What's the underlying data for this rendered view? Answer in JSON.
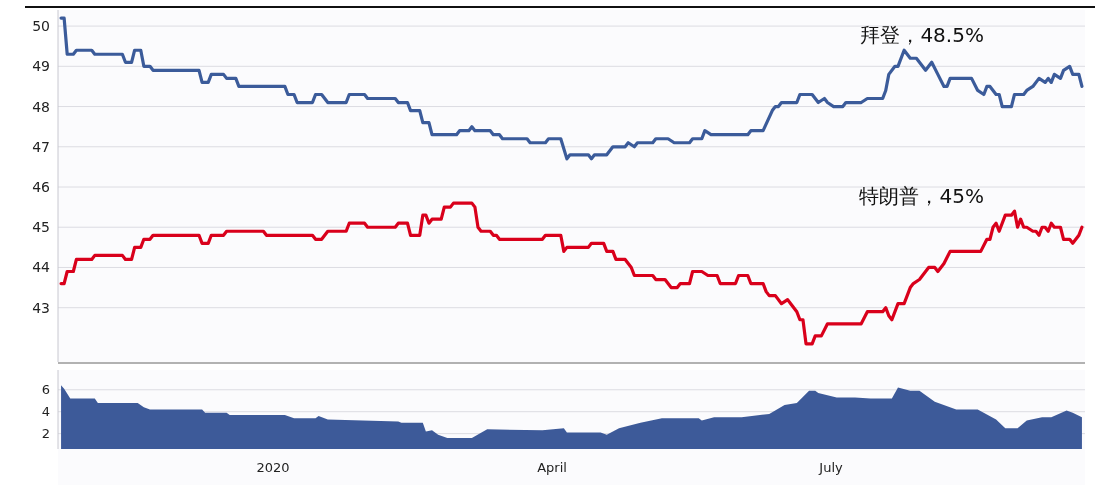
{
  "chart_data": [
    {
      "type": "line",
      "xlim": [
        "2019-10-23",
        "2020-09-22"
      ],
      "ylim": [
        41.65,
        50.4
      ],
      "yticks": [
        43,
        44,
        45,
        46,
        47,
        48,
        49,
        50
      ],
      "grid": "y",
      "tick_labels": "y",
      "annotations": [
        "拜登，48.5%",
        "特朗普，45%"
      ],
      "series": [
        {
          "color": "#3b5b9a",
          "x": [
            "2019-10-24",
            "2019-10-25",
            "2019-10-26",
            "2019-10-28",
            "2019-10-29",
            "2019-11-03",
            "2019-11-04",
            "2019-11-13",
            "2019-11-14",
            "2019-11-16",
            "2019-11-17",
            "2019-11-19",
            "2019-11-20",
            "2019-11-22",
            "2019-11-23",
            "2019-12-08",
            "2019-12-09",
            "2019-12-11",
            "2019-12-12",
            "2019-12-16",
            "2019-12-17",
            "2019-12-20",
            "2019-12-21",
            "2020-01-05",
            "2020-01-06",
            "2020-01-08",
            "2020-01-09",
            "2020-01-14",
            "2020-01-15",
            "2020-01-17",
            "2020-01-19",
            "2020-01-25",
            "2020-01-26",
            "2020-01-31",
            "2020-02-01",
            "2020-02-10",
            "2020-02-11",
            "2020-02-14",
            "2020-02-15",
            "2020-02-18",
            "2020-02-19",
            "2020-02-21",
            "2020-02-22",
            "2020-03-01",
            "2020-03-02",
            "2020-03-05",
            "2020-03-06",
            "2020-03-07",
            "2020-03-12",
            "2020-03-13",
            "2020-03-15",
            "2020-03-16",
            "2020-03-24",
            "2020-03-25",
            "2020-03-30",
            "2020-03-31",
            "2020-04-04",
            "2020-04-06",
            "2020-04-07",
            "2020-04-13",
            "2020-04-14",
            "2020-04-15",
            "2020-04-19",
            "2020-04-21",
            "2020-04-25",
            "2020-04-26",
            "2020-04-28",
            "2020-04-29",
            "2020-05-04",
            "2020-05-05",
            "2020-05-09",
            "2020-05-11",
            "2020-05-16",
            "2020-05-17",
            "2020-05-20",
            "2020-05-21",
            "2020-05-23",
            "2020-06-04",
            "2020-06-05",
            "2020-06-09",
            "2020-06-12",
            "2020-06-13",
            "2020-06-14",
            "2020-06-15",
            "2020-06-20",
            "2020-06-21",
            "2020-06-25",
            "2020-06-27",
            "2020-06-29",
            "2020-06-30",
            "2020-07-02",
            "2020-07-05",
            "2020-07-06",
            "2020-07-11",
            "2020-07-13",
            "2020-07-18",
            "2020-07-19",
            "2020-07-20",
            "2020-07-22",
            "2020-07-23",
            "2020-07-25",
            "2020-07-27",
            "2020-07-29",
            "2020-08-01",
            "2020-08-02",
            "2020-08-03",
            "2020-08-05",
            "2020-08-07",
            "2020-08-08",
            "2020-08-09",
            "2020-08-16",
            "2020-08-18",
            "2020-08-20",
            "2020-08-21",
            "2020-08-22",
            "2020-08-24",
            "2020-08-25",
            "2020-08-26",
            "2020-08-29",
            "2020-08-30",
            "2020-09-02",
            "2020-09-03",
            "2020-09-05",
            "2020-09-07",
            "2020-09-09",
            "2020-09-10",
            "2020-09-11",
            "2020-09-12",
            "2020-09-14",
            "2020-09-15",
            "2020-09-17",
            "2020-09-18",
            "2020-09-20",
            "2020-09-21"
          ],
          "values": [
            50.2,
            50.2,
            49.3,
            49.3,
            49.4,
            49.4,
            49.3,
            49.3,
            49.1,
            49.1,
            49.4,
            49.4,
            49.0,
            49.0,
            48.9,
            48.9,
            48.6,
            48.6,
            48.8,
            48.8,
            48.7,
            48.7,
            48.5,
            48.5,
            48.3,
            48.3,
            48.1,
            48.1,
            48.3,
            48.3,
            48.1,
            48.1,
            48.3,
            48.3,
            48.2,
            48.2,
            48.1,
            48.1,
            47.9,
            47.9,
            47.6,
            47.6,
            47.3,
            47.3,
            47.4,
            47.4,
            47.5,
            47.4,
            47.4,
            47.3,
            47.3,
            47.2,
            47.2,
            47.1,
            47.1,
            47.2,
            47.2,
            46.7,
            46.8,
            46.8,
            46.7,
            46.8,
            46.8,
            47.0,
            47.0,
            47.1,
            47.0,
            47.1,
            47.1,
            47.2,
            47.2,
            47.1,
            47.1,
            47.2,
            47.2,
            47.4,
            47.3,
            47.3,
            47.4,
            47.4,
            47.9,
            48.0,
            48.0,
            48.1,
            48.1,
            48.3,
            48.3,
            48.1,
            48.2,
            48.1,
            48.0,
            48.0,
            48.1,
            48.1,
            48.2,
            48.2,
            48.4,
            48.8,
            49.0,
            49.0,
            49.4,
            49.2,
            49.2,
            48.9,
            49.0,
            49.1,
            48.8,
            48.5,
            48.5,
            48.7,
            48.7,
            48.4,
            48.3,
            48.5,
            48.5,
            48.3,
            48.3,
            48.0,
            48.0,
            48.3,
            48.3,
            48.4,
            48.5,
            48.7,
            48.6,
            48.7,
            48.6,
            48.8,
            48.7,
            48.9,
            49.0,
            48.8,
            48.8,
            48.5
          ]
        },
        {
          "color": "#d9001b",
          "x": [
            "2019-10-24",
            "2019-10-25",
            "2019-10-26",
            "2019-10-28",
            "2019-10-29",
            "2019-11-03",
            "2019-11-04",
            "2019-11-13",
            "2019-11-14",
            "2019-11-16",
            "2019-11-17",
            "2019-11-19",
            "2019-11-20",
            "2019-11-22",
            "2019-11-23",
            "2019-12-08",
            "2019-12-09",
            "2019-12-11",
            "2019-12-12",
            "2019-12-16",
            "2019-12-17",
            "2019-12-29",
            "2019-12-30",
            "2020-01-14",
            "2020-01-15",
            "2020-01-17",
            "2020-01-19",
            "2020-01-25",
            "2020-01-26",
            "2020-01-31",
            "2020-02-01",
            "2020-02-10",
            "2020-02-11",
            "2020-02-14",
            "2020-02-15",
            "2020-02-18",
            "2020-02-19",
            "2020-02-20",
            "2020-02-21",
            "2020-02-22",
            "2020-02-25",
            "2020-02-26",
            "2020-02-28",
            "2020-02-29",
            "2020-03-06",
            "2020-03-07",
            "2020-03-08",
            "2020-03-09",
            "2020-03-12",
            "2020-03-13",
            "2020-03-14",
            "2020-03-15",
            "2020-03-29",
            "2020-03-30",
            "2020-04-04",
            "2020-04-05",
            "2020-04-06",
            "2020-04-13",
            "2020-04-14",
            "2020-04-18",
            "2020-04-19",
            "2020-04-21",
            "2020-04-22",
            "2020-04-25",
            "2020-04-27",
            "2020-04-28",
            "2020-05-04",
            "2020-05-05",
            "2020-05-08",
            "2020-05-10",
            "2020-05-12",
            "2020-05-13",
            "2020-05-16",
            "2020-05-17",
            "2020-05-20",
            "2020-05-22",
            "2020-05-25",
            "2020-05-26",
            "2020-05-31",
            "2020-06-01",
            "2020-06-04",
            "2020-06-05",
            "2020-06-09",
            "2020-06-10",
            "2020-06-11",
            "2020-06-13",
            "2020-06-15",
            "2020-06-17",
            "2020-06-18",
            "2020-06-20",
            "2020-06-21",
            "2020-06-22",
            "2020-06-23",
            "2020-06-25",
            "2020-06-26",
            "2020-06-28",
            "2020-06-30",
            "2020-07-11",
            "2020-07-13",
            "2020-07-18",
            "2020-07-19",
            "2020-07-20",
            "2020-07-21",
            "2020-07-23",
            "2020-07-25",
            "2020-07-27",
            "2020-07-28",
            "2020-07-30",
            "2020-07-31",
            "2020-08-02",
            "2020-08-04",
            "2020-08-05",
            "2020-08-07",
            "2020-08-09",
            "2020-08-19",
            "2020-08-21",
            "2020-08-22",
            "2020-08-23",
            "2020-08-24",
            "2020-08-25",
            "2020-08-27",
            "2020-08-29",
            "2020-08-30",
            "2020-08-31",
            "2020-09-01",
            "2020-09-02",
            "2020-09-03",
            "2020-09-05",
            "2020-09-06",
            "2020-09-07",
            "2020-09-08",
            "2020-09-09",
            "2020-09-10",
            "2020-09-11",
            "2020-09-12",
            "2020-09-14",
            "2020-09-15",
            "2020-09-17",
            "2020-09-18",
            "2020-09-20",
            "2020-09-21"
          ],
          "values": [
            43.6,
            43.6,
            43.9,
            43.9,
            44.2,
            44.2,
            44.3,
            44.3,
            44.2,
            44.2,
            44.5,
            44.5,
            44.7,
            44.7,
            44.8,
            44.8,
            44.6,
            44.6,
            44.8,
            44.8,
            44.9,
            44.9,
            44.8,
            44.8,
            44.7,
            44.7,
            44.9,
            44.9,
            45.1,
            45.1,
            45.0,
            45.0,
            45.1,
            45.1,
            44.8,
            44.8,
            45.3,
            45.3,
            45.1,
            45.2,
            45.2,
            45.5,
            45.5,
            45.6,
            45.6,
            45.5,
            45.0,
            44.9,
            44.9,
            44.8,
            44.8,
            44.7,
            44.7,
            44.8,
            44.8,
            44.4,
            44.5,
            44.5,
            44.6,
            44.6,
            44.4,
            44.4,
            44.2,
            44.2,
            44.0,
            43.8,
            43.8,
            43.7,
            43.7,
            43.5,
            43.5,
            43.6,
            43.6,
            43.9,
            43.9,
            43.8,
            43.8,
            43.6,
            43.6,
            43.8,
            43.8,
            43.6,
            43.6,
            43.4,
            43.3,
            43.3,
            43.1,
            43.2,
            43.1,
            42.9,
            42.7,
            42.7,
            42.1,
            42.1,
            42.3,
            42.3,
            42.6,
            42.6,
            42.9,
            42.9,
            43.0,
            42.8,
            42.7,
            43.1,
            43.1,
            43.5,
            43.6,
            43.7,
            43.8,
            44.0,
            44.0,
            43.9,
            44.1,
            44.4,
            44.4,
            44.7,
            44.7,
            45.0,
            45.1,
            44.9,
            45.3,
            45.3,
            45.4,
            45.0,
            45.2,
            45.0,
            45.0,
            44.9,
            44.9,
            44.8,
            45.0,
            45.0,
            44.9,
            45.1,
            45.0,
            45.0,
            44.7,
            44.7,
            44.6,
            44.8,
            45.0
          ]
        }
      ]
    },
    {
      "type": "area",
      "xlim": [
        "2019-10-23",
        "2020-09-22"
      ],
      "xticks": [
        {
          "value": "2020-01-01",
          "label": "2020"
        },
        {
          "value": "2020-04-01",
          "label": "April"
        },
        {
          "value": "2020-07-01",
          "label": "July"
        }
      ],
      "ylim": [
        0.6,
        7.8
      ],
      "yticks": [
        2,
        4,
        6
      ],
      "grid": "y",
      "color": "#3d5a99",
      "x": [
        "2019-10-24",
        "2019-10-25",
        "2019-10-27",
        "2019-11-04",
        "2019-11-05",
        "2019-11-18",
        "2019-11-20",
        "2019-11-22",
        "2019-12-09",
        "2019-12-10",
        "2019-12-17",
        "2019-12-18",
        "2020-01-05",
        "2020-01-08",
        "2020-01-15",
        "2020-01-16",
        "2020-01-19",
        "2020-02-11",
        "2020-02-12",
        "2020-02-19",
        "2020-02-20",
        "2020-02-22",
        "2020-02-24",
        "2020-02-27",
        "2020-03-06",
        "2020-03-11",
        "2020-03-29",
        "2020-04-05",
        "2020-04-06",
        "2020-04-17",
        "2020-04-19",
        "2020-04-23",
        "2020-04-30",
        "2020-05-07",
        "2020-05-19",
        "2020-05-20",
        "2020-05-24",
        "2020-06-02",
        "2020-06-11",
        "2020-06-16",
        "2020-06-20",
        "2020-06-24",
        "2020-06-26",
        "2020-06-27",
        "2020-07-03",
        "2020-07-09",
        "2020-07-14",
        "2020-07-21",
        "2020-07-23",
        "2020-07-27",
        "2020-07-30",
        "2020-08-04",
        "2020-08-11",
        "2020-08-18",
        "2020-08-24",
        "2020-08-27",
        "2020-08-31",
        "2020-09-03",
        "2020-09-08",
        "2020-09-11",
        "2020-09-16",
        "2020-09-18",
        "2020-09-21"
      ],
      "values": [
        6.4,
        6.1,
        5.2,
        5.2,
        4.8,
        4.8,
        4.4,
        4.2,
        4.2,
        3.9,
        3.9,
        3.7,
        3.7,
        3.4,
        3.4,
        3.6,
        3.3,
        3.1,
        3.0,
        3.0,
        2.2,
        2.3,
        1.9,
        1.6,
        1.6,
        2.4,
        2.3,
        2.5,
        2.1,
        2.1,
        1.9,
        2.5,
        3.0,
        3.4,
        3.4,
        3.2,
        3.5,
        3.5,
        3.8,
        4.6,
        4.8,
        5.9,
        5.9,
        5.7,
        5.3,
        5.3,
        5.2,
        5.2,
        6.2,
        5.9,
        5.9,
        4.9,
        4.2,
        4.2,
        3.3,
        2.5,
        2.5,
        3.2,
        3.5,
        3.5,
        4.1,
        3.9,
        3.5
      ]
    }
  ]
}
